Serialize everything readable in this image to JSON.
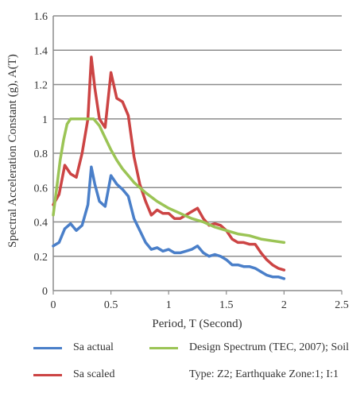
{
  "chart_data": {
    "type": "line",
    "title": "",
    "xlabel": "Period, T (Second)",
    "ylabel": "Spectral Acceleration Constant (g), A(T)",
    "xlim": [
      0,
      2.5
    ],
    "ylim": [
      0,
      1.6
    ],
    "xticks": [
      "0",
      "0.5",
      "1",
      "1.5",
      "2",
      "2.5"
    ],
    "yticks": [
      "0",
      "0.2",
      "0.4",
      "0.6",
      "0.8",
      "1",
      "1.2",
      "1.4",
      "1.6"
    ],
    "grid": "horizontal",
    "legend_position": "bottom",
    "series": [
      {
        "name": "Sa actual",
        "color": "#4a7fc9",
        "x": [
          0,
          0.05,
          0.1,
          0.15,
          0.2,
          0.25,
          0.3,
          0.33,
          0.36,
          0.4,
          0.45,
          0.5,
          0.55,
          0.6,
          0.65,
          0.7,
          0.75,
          0.8,
          0.85,
          0.9,
          0.95,
          1.0,
          1.05,
          1.1,
          1.15,
          1.2,
          1.25,
          1.3,
          1.35,
          1.4,
          1.45,
          1.5,
          1.55,
          1.6,
          1.65,
          1.7,
          1.75,
          1.8,
          1.85,
          1.9,
          1.95,
          2.0
        ],
        "y": [
          0.26,
          0.28,
          0.36,
          0.39,
          0.35,
          0.38,
          0.5,
          0.72,
          0.62,
          0.52,
          0.49,
          0.67,
          0.62,
          0.59,
          0.55,
          0.42,
          0.35,
          0.28,
          0.24,
          0.25,
          0.23,
          0.24,
          0.22,
          0.22,
          0.23,
          0.24,
          0.26,
          0.22,
          0.2,
          0.21,
          0.2,
          0.18,
          0.15,
          0.15,
          0.14,
          0.14,
          0.13,
          0.11,
          0.09,
          0.08,
          0.08,
          0.07
        ]
      },
      {
        "name": "Sa scaled",
        "color": "#cc4444",
        "x": [
          0,
          0.05,
          0.1,
          0.15,
          0.2,
          0.25,
          0.3,
          0.33,
          0.36,
          0.4,
          0.45,
          0.5,
          0.55,
          0.6,
          0.65,
          0.7,
          0.75,
          0.8,
          0.85,
          0.9,
          0.95,
          1.0,
          1.05,
          1.1,
          1.15,
          1.2,
          1.25,
          1.3,
          1.35,
          1.4,
          1.45,
          1.5,
          1.55,
          1.6,
          1.65,
          1.7,
          1.75,
          1.8,
          1.85,
          1.9,
          1.95,
          2.0
        ],
        "y": [
          0.5,
          0.56,
          0.73,
          0.68,
          0.66,
          0.8,
          1.0,
          1.36,
          1.18,
          1.0,
          0.95,
          1.27,
          1.12,
          1.1,
          1.02,
          0.78,
          0.62,
          0.52,
          0.44,
          0.47,
          0.45,
          0.45,
          0.42,
          0.42,
          0.44,
          0.46,
          0.48,
          0.42,
          0.38,
          0.39,
          0.38,
          0.35,
          0.3,
          0.28,
          0.28,
          0.27,
          0.27,
          0.22,
          0.18,
          0.15,
          0.13,
          0.12
        ]
      },
      {
        "name": "Design Spectrum (TEC, 2007); Soil",
        "color": "#9bc455",
        "x": [
          0,
          0.03,
          0.06,
          0.09,
          0.12,
          0.15,
          0.2,
          0.25,
          0.3,
          0.35,
          0.4,
          0.45,
          0.5,
          0.55,
          0.6,
          0.65,
          0.7,
          0.8,
          0.9,
          1.0,
          1.1,
          1.2,
          1.3,
          1.4,
          1.5,
          1.6,
          1.7,
          1.8,
          1.9,
          2.0
        ],
        "y": [
          0.44,
          0.6,
          0.76,
          0.88,
          0.97,
          1.0,
          1.0,
          1.0,
          1.0,
          1.0,
          0.96,
          0.89,
          0.82,
          0.76,
          0.71,
          0.67,
          0.63,
          0.57,
          0.52,
          0.48,
          0.45,
          0.42,
          0.4,
          0.37,
          0.35,
          0.33,
          0.32,
          0.3,
          0.29,
          0.28
        ]
      }
    ],
    "legend_extra": "Type: Z2; Earthquake Zone:1; I:1"
  }
}
